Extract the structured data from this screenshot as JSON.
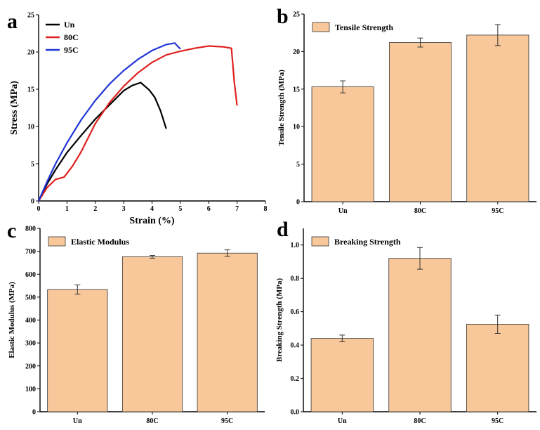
{
  "colors": {
    "bar_fill": "#f8c89a",
    "bar_stroke": "#333333",
    "axis": "#000000"
  },
  "chart_data": [
    {
      "panel_label": "a",
      "type": "line",
      "xlabel": "Strain (%)",
      "ylabel": "Stress (MPa)",
      "xlim": [
        0,
        8
      ],
      "ylim": [
        0,
        25
      ],
      "xticks": [
        "0",
        "1",
        "2",
        "3",
        "4",
        "5",
        "6",
        "7",
        "8"
      ],
      "yticks": [
        "0",
        "5",
        "10",
        "15",
        "20",
        "25"
      ],
      "legend_position": "top-left",
      "series": [
        {
          "name": "Un",
          "color": "#000000",
          "x": [
            0,
            0.3,
            0.6,
            1.0,
            1.5,
            2.0,
            2.5,
            3.0,
            3.3,
            3.6,
            3.9,
            4.1,
            4.3,
            4.5
          ],
          "y": [
            0,
            2.3,
            4.2,
            6.5,
            8.8,
            11.0,
            12.9,
            14.8,
            15.5,
            15.9,
            14.9,
            13.9,
            12.1,
            9.7
          ]
        },
        {
          "name": "80C",
          "color": "#e02020",
          "x": [
            0,
            0.3,
            0.6,
            0.9,
            1.2,
            1.5,
            2.0,
            2.5,
            3.0,
            3.5,
            4.0,
            4.5,
            5.0,
            5.5,
            6.0,
            6.5,
            6.8,
            6.9,
            7.0
          ],
          "y": [
            0,
            1.8,
            2.9,
            3.2,
            4.7,
            6.6,
            10.4,
            13.2,
            15.4,
            17.2,
            18.6,
            19.6,
            20.1,
            20.5,
            20.8,
            20.7,
            20.5,
            16.0,
            12.8
          ]
        },
        {
          "name": "95C",
          "color": "#1f36d6",
          "x": [
            0,
            0.3,
            0.6,
            1.0,
            1.5,
            2.0,
            2.5,
            3.0,
            3.5,
            4.0,
            4.5,
            4.8,
            5.0
          ],
          "y": [
            0,
            2.6,
            5.0,
            7.8,
            10.9,
            13.5,
            15.7,
            17.5,
            19.0,
            20.2,
            21.0,
            21.2,
            20.4
          ]
        }
      ]
    },
    {
      "panel_label": "b",
      "type": "bar",
      "title": "Tensile Strength",
      "ylabel": "Tensile Strength (MPa)",
      "categories": [
        "Un",
        "80C",
        "95C"
      ],
      "values": [
        15.3,
        21.2,
        22.2
      ],
      "errors": [
        0.8,
        0.6,
        1.4
      ],
      "ylim": [
        0,
        25
      ],
      "yticks": [
        "0",
        "5",
        "10",
        "15",
        "20",
        "25"
      ],
      "legend_position": "top-left"
    },
    {
      "panel_label": "c",
      "type": "bar",
      "title": "Elastic Modulus",
      "ylabel": "Elastic Modulus (MPa)",
      "categories": [
        "Un",
        "80C",
        "95C"
      ],
      "values": [
        533,
        676,
        692
      ],
      "errors": [
        20,
        6,
        14
      ],
      "ylim": [
        0,
        800
      ],
      "yticks": [
        "0",
        "100",
        "200",
        "300",
        "400",
        "500",
        "600",
        "700",
        "800"
      ],
      "legend_position": "top-left"
    },
    {
      "panel_label": "d",
      "type": "bar",
      "title": "Breaking Strength",
      "ylabel": "Breaking Strength (MPa)",
      "categories": [
        "Un",
        "80C",
        "95C"
      ],
      "values": [
        0.44,
        0.92,
        0.525
      ],
      "errors": [
        0.02,
        0.065,
        0.055
      ],
      "ylim": [
        0,
        1.1
      ],
      "yticks": [
        "0.0",
        "0.2",
        "0.4",
        "0.6",
        "0.8",
        "1.0"
      ],
      "ytick_values": [
        0,
        0.2,
        0.4,
        0.6,
        0.8,
        1.0
      ],
      "legend_position": "top-left"
    }
  ]
}
